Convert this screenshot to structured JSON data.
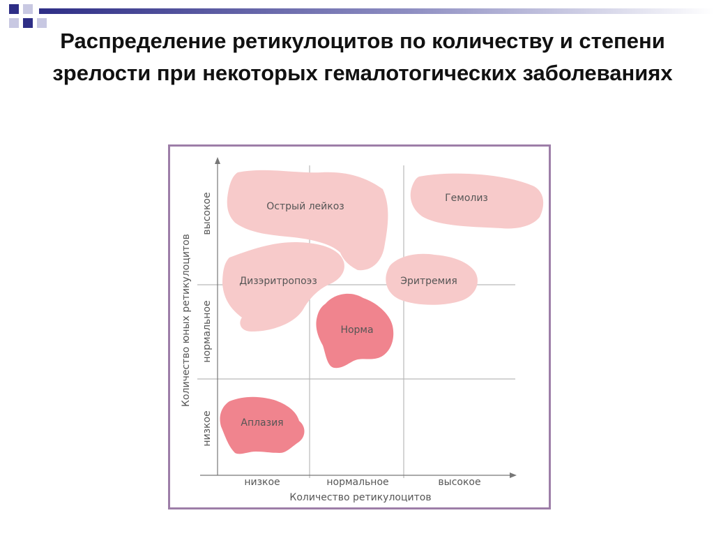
{
  "slide": {
    "title": "Распределение ретикулоцитов по количеству и степени зрелости при некоторых гемалотогических заболеваниях"
  },
  "diagram": {
    "x_axis_title": "Количество ретикулоцитов",
    "y_axis_title": "Количество юных ретикулоцитов",
    "x_levels": [
      "низкое",
      "нормальное",
      "высокое"
    ],
    "y_levels": [
      "низкое",
      "нормальное",
      "высокое"
    ],
    "regions": {
      "acute_leukemia": "Острый лейкоз",
      "hemolysis": "Гемолиз",
      "dyserythropoiesis": "Дизэритропоэз",
      "erythremia": "Эритремия",
      "norm": "Норма",
      "aplasia": "Аплазия"
    },
    "colors": {
      "light_region": "#f7caca",
      "dark_region": "#f0848e",
      "frame": "#9d7ea8",
      "grid": "#b9b9b9",
      "deco_blue": "#2e2e86"
    }
  }
}
